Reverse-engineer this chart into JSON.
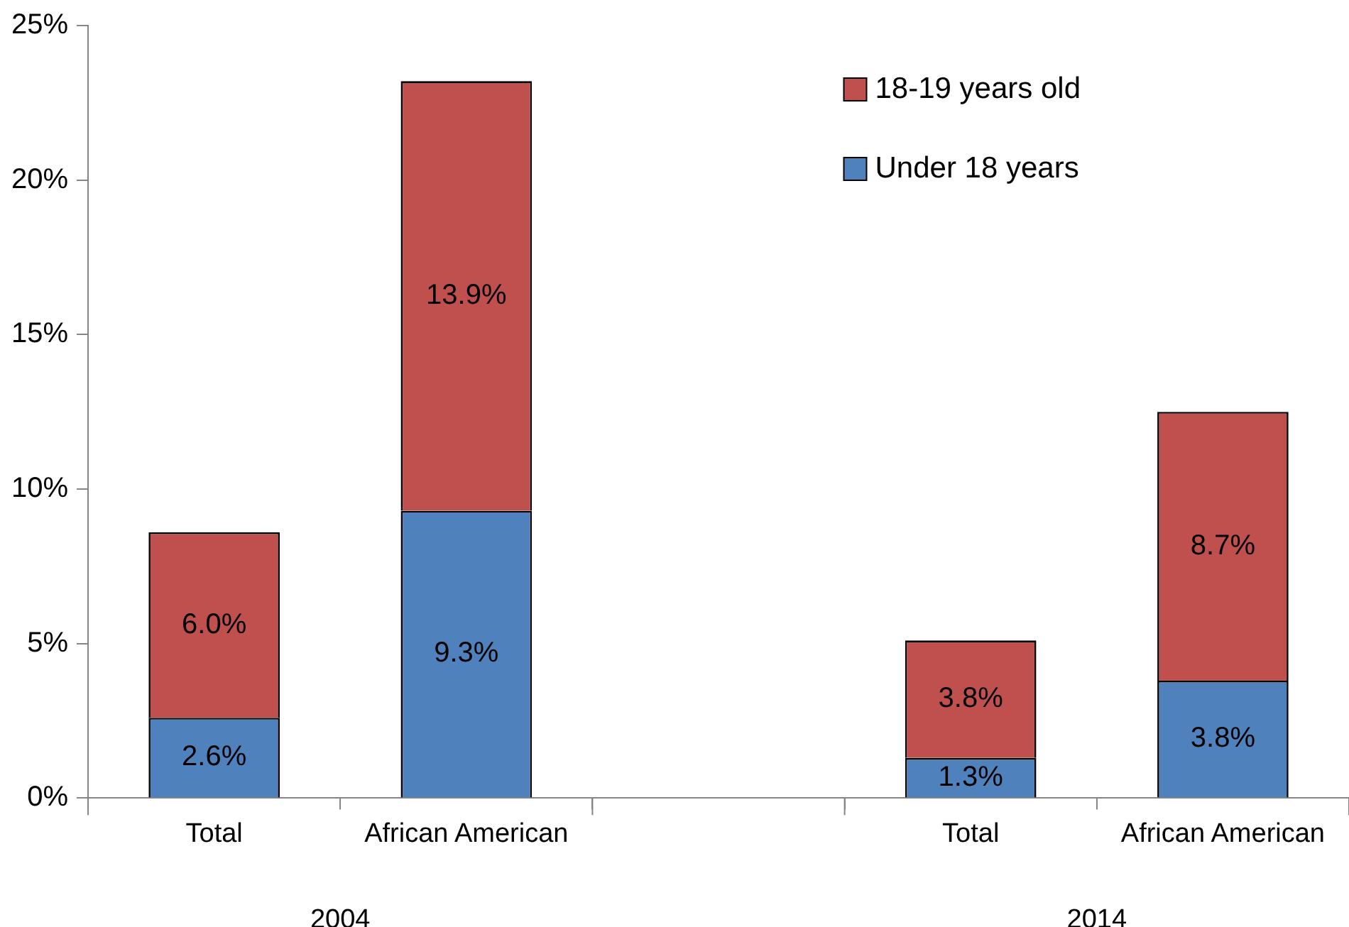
{
  "chart_data": {
    "type": "bar",
    "stacked": true,
    "categories": [
      "Total",
      "African American",
      null,
      "Total",
      "African American"
    ],
    "series": [
      {
        "name": "Under 18 years",
        "color": "#4f81bd",
        "values": [
          2.6,
          9.3,
          null,
          1.3,
          3.8
        ],
        "value_labels": [
          "2.6%",
          "9.3%",
          null,
          "1.3%",
          "3.8%"
        ]
      },
      {
        "name": "18-19 years old",
        "color": "#c0504d",
        "values": [
          6.0,
          13.9,
          null,
          3.8,
          8.7
        ],
        "value_labels": [
          "6.0%",
          "13.9%",
          null,
          "3.8%",
          "8.7%"
        ]
      }
    ],
    "annotations": [
      "2004",
      "2014"
    ],
    "ylim": [
      0,
      25
    ],
    "yticks": [
      {
        "value": 0,
        "label": "0%"
      },
      {
        "value": 5,
        "label": "5%"
      },
      {
        "value": 10,
        "label": "10%"
      },
      {
        "value": 15,
        "label": "15%"
      },
      {
        "value": 20,
        "label": "20%"
      },
      {
        "value": 25,
        "label": "25%"
      }
    ],
    "grid": false,
    "legend": "top right"
  }
}
